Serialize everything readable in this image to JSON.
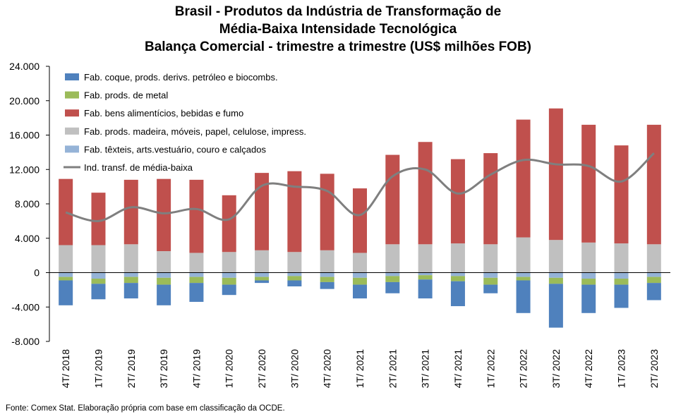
{
  "title_lines": [
    "Brasil - Produtos da Indústria de Transformação de",
    "Média-Baixa Intensidade Tecnológica",
    "Balança Comercial - trimestre a trimestre (US$ milhões FOB)"
  ],
  "source": "Fonte: Comex Stat. Elaboração própria com base em classificação da OCDE.",
  "chart_data": {
    "type": "bar",
    "stacked": true,
    "title": "Brasil - Produtos da Indústria de Transformação de Média-Baixa Intensidade Tecnológica Balança Comercial - trimestre a trimestre (US$ milhões FOB)",
    "categories": [
      "4T/ 2018",
      "1T/ 2019",
      "2T/ 2019",
      "3T/ 2019",
      "4T/ 2019",
      "1T/ 2020",
      "2T/ 2020",
      "3T/ 2020",
      "4T/ 2020",
      "1T/ 2021",
      "2T/ 2021",
      "3T/ 2021",
      "4T/ 2021",
      "1T/ 2022",
      "2T/ 2022",
      "3T/ 2022",
      "4T/ 2022",
      "1T/ 2023",
      "2T/ 2023"
    ],
    "ylim": [
      -8000,
      24000
    ],
    "yticks": [
      -8000,
      -4000,
      0,
      4000,
      8000,
      12000,
      16000,
      20000,
      24000
    ],
    "ytick_labels": [
      "-8.000",
      "-4.000",
      "0",
      "4.000",
      "8.000",
      "12.000",
      "16.000",
      "20.000",
      "24.000"
    ],
    "legend_position": "top-left",
    "stack_order": [
      "Fab. têxteis, arts.vestuário, couro e calçados",
      "Fab. prods. madeira, móveis, papel, celulose, impress.",
      "Fab. bens alimentícios, bebidas e fumo",
      "Fab. prods. de metal",
      "Fab. coque, prods. derivs. petróleo e biocombs."
    ],
    "series": [
      {
        "name": "Fab. coque, prods. derivs. petróleo e biocombs.",
        "color": "#4f81bd",
        "values": [
          -2900,
          -1800,
          -1800,
          -2400,
          -2200,
          -1200,
          -300,
          -700,
          -800,
          -1600,
          -1300,
          -2200,
          -2900,
          -1000,
          -3800,
          -5100,
          -3300,
          -2700,
          -2000
        ]
      },
      {
        "name": "Fab. prods. de metal",
        "color": "#9bbb59",
        "values": [
          -400,
          -600,
          -700,
          -800,
          -700,
          -800,
          -400,
          -500,
          -600,
          -800,
          -700,
          -500,
          -600,
          -800,
          -400,
          -700,
          -700,
          -700,
          -700
        ]
      },
      {
        "name": "Fab. bens alimentícios, bebidas e fumo",
        "color": "#c0504d",
        "values": [
          7700,
          6100,
          7500,
          8400,
          8500,
          6600,
          9000,
          9400,
          8900,
          7500,
          10400,
          11900,
          9800,
          10600,
          13700,
          15300,
          13700,
          11400,
          13900
        ]
      },
      {
        "name": "Fab. prods. madeira, móveis, papel, celulose, impress.",
        "color": "#c0c0c0",
        "values": [
          3200,
          3200,
          3300,
          2500,
          2300,
          2400,
          2600,
          2400,
          2600,
          2300,
          3300,
          3300,
          3400,
          3300,
          4100,
          3800,
          3500,
          3400,
          3300
        ]
      },
      {
        "name": "Fab. têxteis, arts.vestuário, couro e calçados",
        "color": "#95b3d7",
        "values": [
          -500,
          -700,
          -500,
          -600,
          -500,
          -600,
          -500,
          -400,
          -500,
          -600,
          -400,
          -300,
          -400,
          -600,
          -500,
          -600,
          -700,
          -700,
          -500
        ]
      },
      {
        "name": "Ind. transf. de média-baixa",
        "type": "line",
        "color": "#7f7f7f",
        "values": [
          7000,
          6000,
          7600,
          6900,
          7400,
          6200,
          10100,
          10000,
          9500,
          6700,
          11200,
          12000,
          9200,
          11400,
          13100,
          12600,
          12400,
          10600,
          13900
        ]
      }
    ]
  }
}
